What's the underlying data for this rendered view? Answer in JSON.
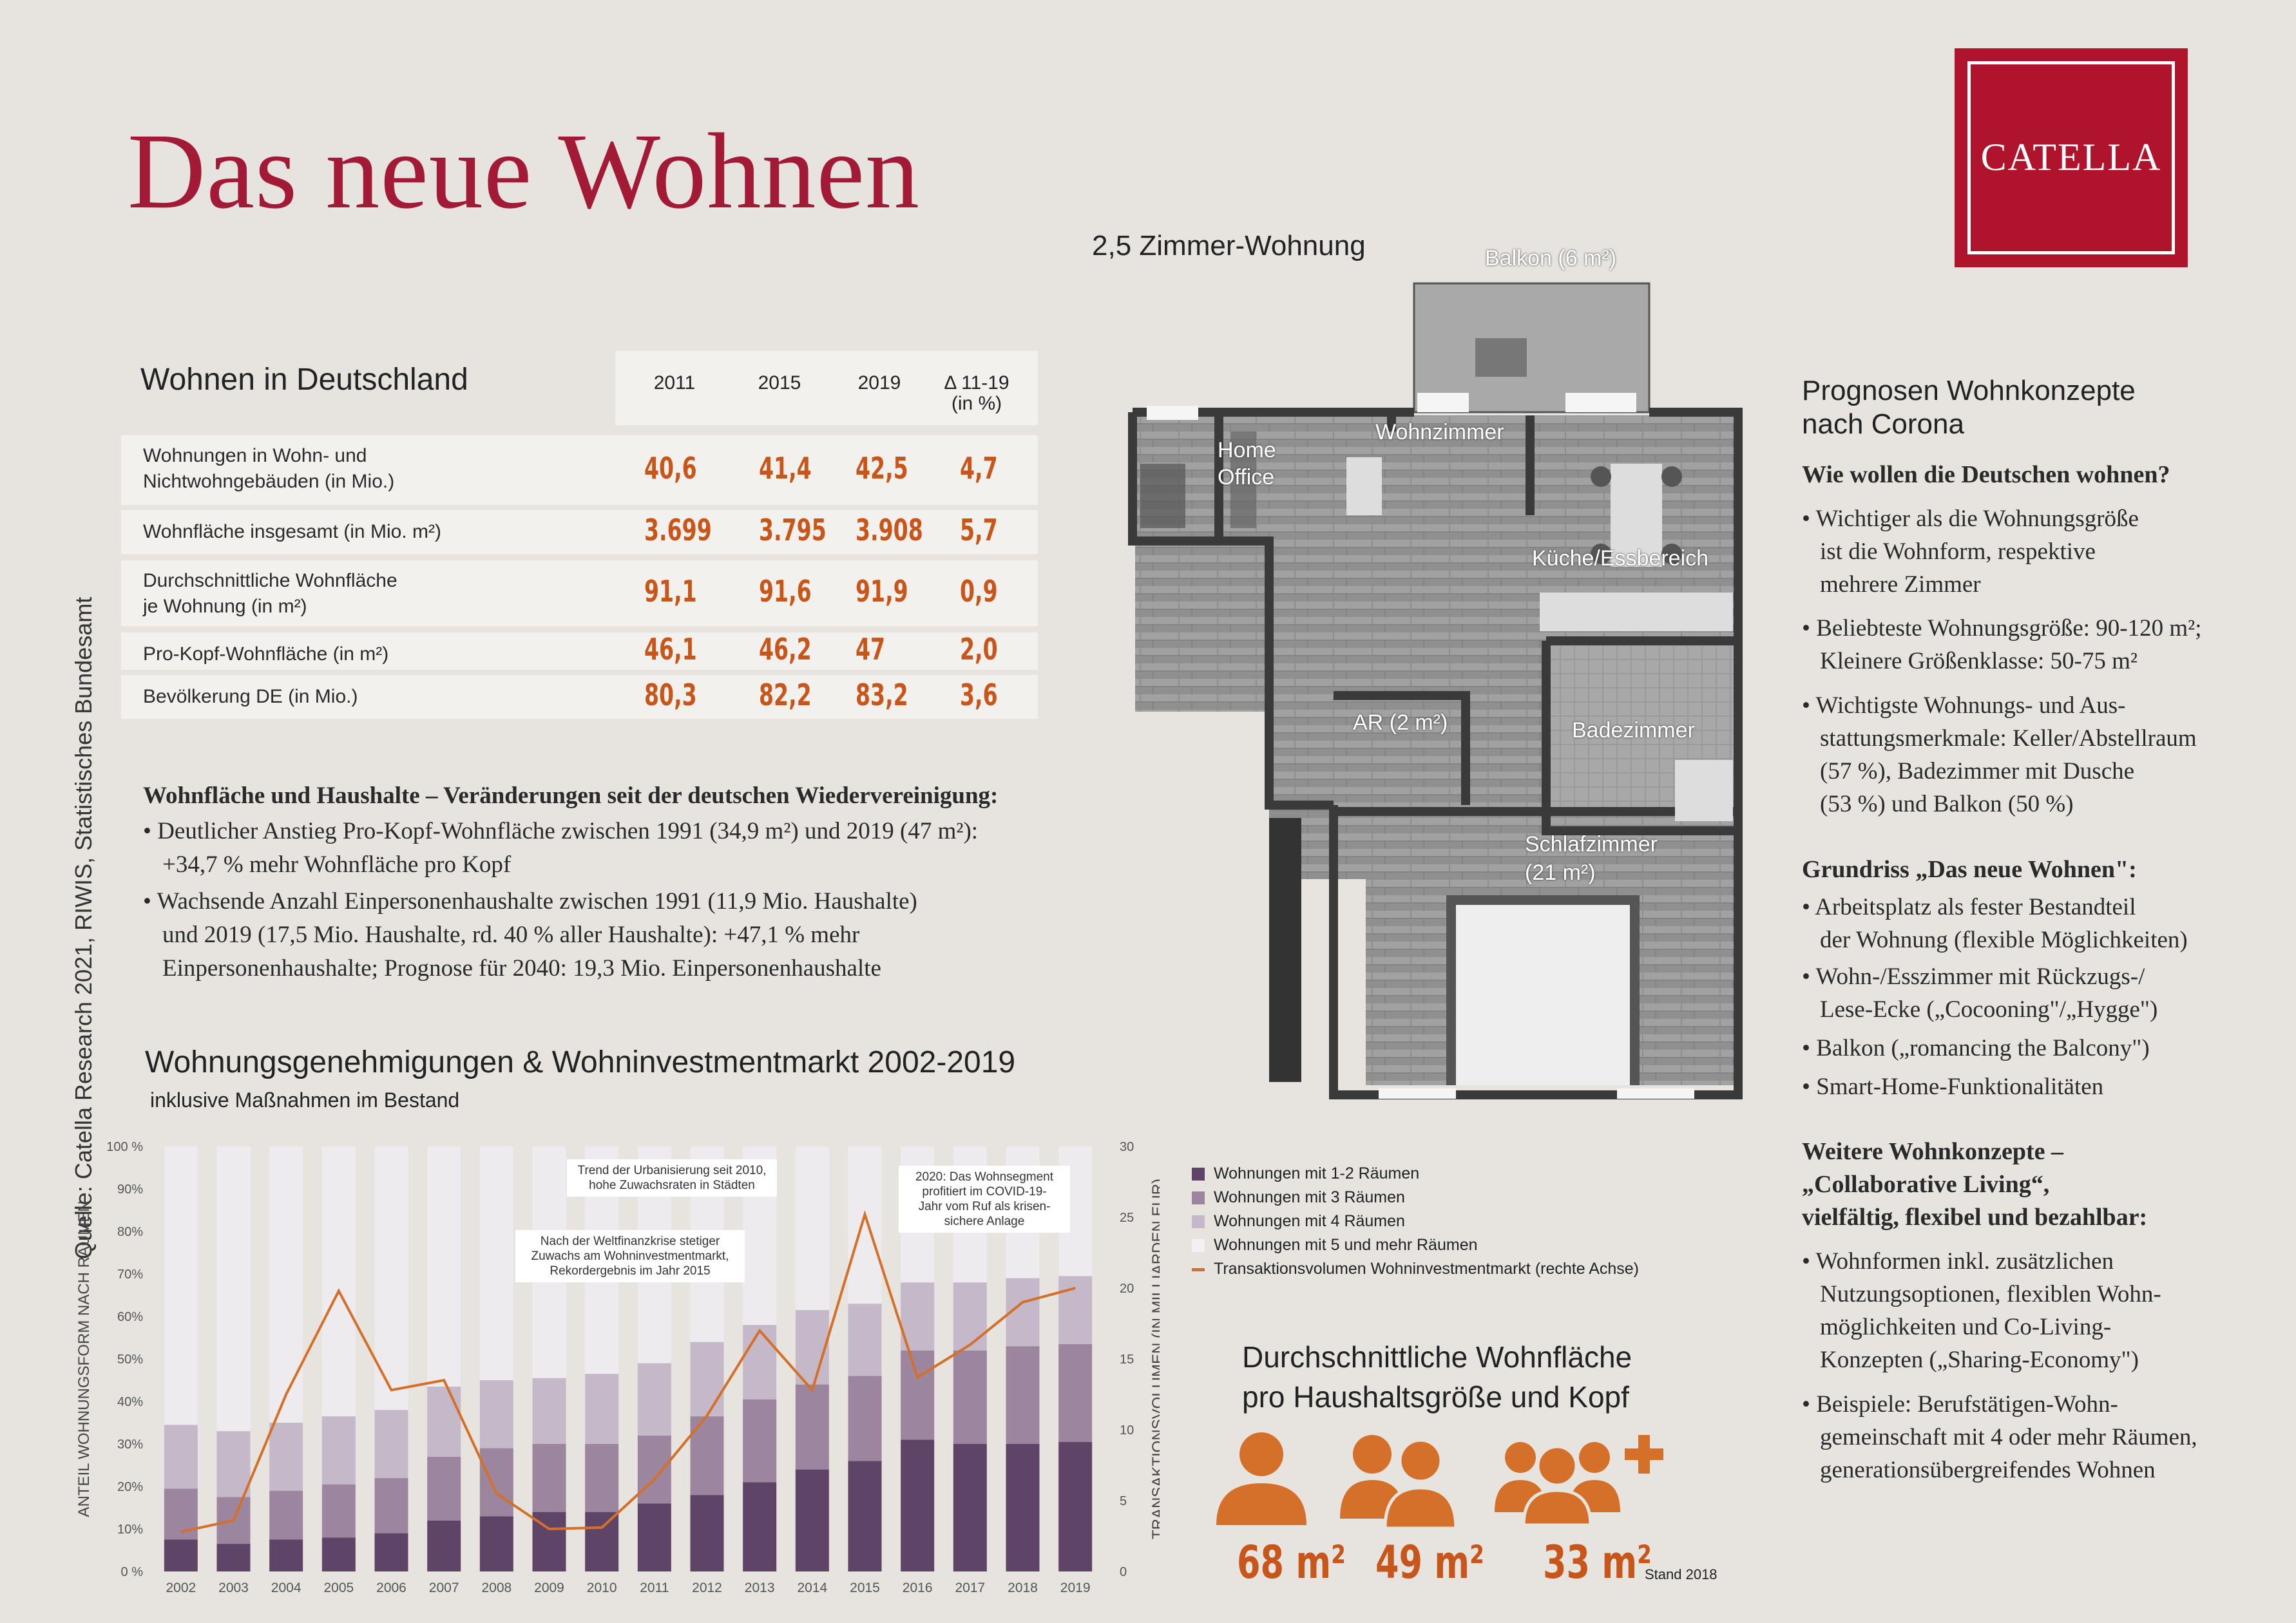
{
  "title": "Das neue Wohnen",
  "logo": "CATELLA",
  "source": "Quelle: Catella Research 2021, RIWIS, Statistisches Bundesamt",
  "table": {
    "title": "Wohnen in Deutschland",
    "headers": [
      "2011",
      "2015",
      "2019",
      "Δ 11-19",
      "(in %)"
    ],
    "rows": [
      {
        "label1": "Wohnungen in Wohn- und",
        "label2": "Nichtwohngebäuden (in Mio.)",
        "v": [
          "40,6",
          "41,4",
          "42,5",
          "4,7"
        ]
      },
      {
        "label1": "Wohnfläche insgesamt (in Mio. m²)",
        "label2": "",
        "v": [
          "3.699",
          "3.795",
          "3.908",
          "5,7"
        ]
      },
      {
        "label1": "Durchschnittliche Wohnfläche",
        "label2": "je Wohnung (in m²)",
        "v": [
          "91,1",
          "91,6",
          "91,9",
          "0,9"
        ]
      },
      {
        "label1": "Pro-Kopf-Wohnfläche (in m²)",
        "label2": "",
        "v": [
          "46,1",
          "46,2",
          "47",
          "2,0"
        ]
      },
      {
        "label1": "Bevölkerung DE (in Mio.)",
        "label2": "",
        "v": [
          "80,3",
          "82,2",
          "83,2",
          "3,6"
        ]
      }
    ]
  },
  "households": {
    "heading": "Wohnfläche und Haushalte – Veränderungen seit der deutschen Wiedervereinigung:",
    "b1l1": "• Deutlicher Anstieg Pro-Kopf-Wohnfläche zwischen 1991 (34,9 m²) und 2019 (47 m²):",
    "b1l2": "+34,7 % mehr Wohnfläche pro Kopf",
    "b2l1": "• Wachsende Anzahl Einpersonenhaushalte zwischen 1991 (11,9 Mio. Haushalte)",
    "b2l2": "und 2019 (17,5 Mio. Haushalte, rd. 40 % aller Haushalte): +47,1 % mehr",
    "b2l3": "Einpersonenhaushalte; Prognose für 2040: 19,3 Mio. Einpersonenhaushalte"
  },
  "chart_title": "Wohnungsgenehmigungen & Wohninvestmentmarkt 2002-2019",
  "chart_subtitle": "inklusive Maßnahmen im Bestand",
  "chart_data": {
    "type": "bar",
    "title": "Wohnungsgenehmigungen & Wohninvestmentmarkt 2002-2019",
    "subtitle": "inklusive Maßnahmen im Bestand",
    "stacked": true,
    "categories": [
      "2002",
      "2003",
      "2004",
      "2005",
      "2006",
      "2007",
      "2008",
      "2009",
      "2010",
      "2011",
      "2012",
      "2013",
      "2014",
      "2015",
      "2016",
      "2017",
      "2018",
      "2019"
    ],
    "ylabel": "ANTEIL WOHNUNGSFORM NACH RÄUMEN",
    "ylabel_right": "TRANSAKTIONSVOLUMEN (IN MILLIARDEN EUR)",
    "ylim": [
      0,
      100
    ],
    "ylim_right": [
      0,
      30
    ],
    "yticks": [
      "0 %",
      "10%",
      "20%",
      "30%",
      "40%",
      "50%",
      "60%",
      "70%",
      "80%",
      "90%",
      "100 %"
    ],
    "yticks_right": [
      "0",
      "5",
      "10",
      "15",
      "20",
      "25",
      "30"
    ],
    "series": [
      {
        "name": "Wohnungen mit 1-2 Räumen",
        "color": "#5e4467",
        "values": [
          7.5,
          6.5,
          7.5,
          8,
          9,
          12,
          13,
          14,
          14,
          16,
          18,
          21,
          24,
          26,
          31,
          30,
          30,
          30.5
        ]
      },
      {
        "name": "Wohnungen mit 3 Räumen",
        "color": "#9b859f",
        "values": [
          12,
          11,
          11.5,
          12.5,
          13,
          15,
          16,
          16,
          16,
          16,
          18.5,
          19.5,
          20,
          20,
          21,
          22,
          23,
          23
        ]
      },
      {
        "name": "Wohnungen mit 4 Räumen",
        "color": "#c5b8c8",
        "values": [
          15,
          15.5,
          16,
          16,
          16,
          16.5,
          16,
          15.5,
          16.5,
          17,
          17.5,
          17.5,
          17.5,
          17,
          16,
          16,
          16,
          16
        ]
      },
      {
        "name": "Wohnungen mit 5 und mehr Räumen",
        "color": "#eeebee",
        "values": [
          65.5,
          67,
          65,
          63.5,
          62,
          56.5,
          55,
          54.5,
          53.5,
          51,
          46,
          42,
          38.5,
          37,
          32,
          32,
          31,
          30.5
        ]
      },
      {
        "name": "Transaktionsvolumen Wohninvestmentmarkt (rechte Achse)",
        "type": "line",
        "axis": "right",
        "color": "#d4702a",
        "values": [
          2.8,
          3.6,
          12.5,
          19.8,
          12.8,
          13.5,
          5.5,
          3.0,
          3.1,
          6.5,
          11,
          17,
          12.8,
          25.2,
          13.7,
          16,
          19,
          20
        ]
      }
    ],
    "annotations": [
      {
        "line1": "Nach der Weltfinanzkrise stetiger",
        "line2": "Zuwachs am Wohninvestmentmarkt,",
        "line3": "Rekordergebnis im Jahr 2015"
      },
      {
        "line1": "Trend der Urbanisierung seit 2010,",
        "line2": "hohe Zuwachsraten in Städten"
      },
      {
        "line1": "2020: Das Wohnsegment",
        "line2": "profitiert im COVID-19-",
        "line3": "Jahr vom Ruf als krisen-",
        "line4": "sichere Anlage"
      }
    ],
    "legend_position": "right"
  },
  "plan": {
    "title": "2,5 Zimmer-Wohnung",
    "rooms": {
      "balkon": "Balkon (6 m²)",
      "office1": "Home",
      "office2": "Office",
      "wohn": "Wohnzimmer",
      "kueche": "Küche/Essbereich",
      "ar": "AR (2 m²)",
      "bad": "Badezimmer",
      "schlaf1": "Schlafzimmer",
      "schlaf2": "(21 m²)"
    }
  },
  "avg": {
    "title1": "Durchschnittliche Wohnfläche",
    "title2": "pro Haushaltsgröße und Kopf",
    "v1": "68 m²",
    "v2": "49 m²",
    "v3": "33 m²",
    "stand": "Stand 2018",
    "icon_color": "#d4702a"
  },
  "right": {
    "title1": "Prognosen Wohnkonzepte",
    "title2": "nach Corona",
    "q": "Wie wollen die Deutschen wohnen?",
    "a1": "• Wichtiger als die Wohnungsgröße",
    "a2": "ist die Wohnform, respektive",
    "a3": "mehrere Zimmer",
    "a4": "• Beliebteste Wohnungsgröße: 90-120 m²;",
    "a5": "Kleinere Größenklasse: 50-75 m²",
    "a6": "• Wichtigste Wohnungs- und Aus-",
    "a7": "stattungsmerkmale: Keller/Abstellraum",
    "a8": "(57 %), Badezimmer mit Dusche",
    "a9": "(53 %) und Balkon (50 %)",
    "g": "Grundriss „Das neue Wohnen\":",
    "g1": "• Arbeitsplatz als fester Bestandteil",
    "g2": "der Wohnung (flexible Möglichkeiten)",
    "g3": "• Wohn-/Esszimmer mit Rückzugs-/",
    "g4": "Lese-Ecke („Cocooning\"/„Hygge\")",
    "g5": "• Balkon („romancing the Balcony\")",
    "g6": "• Smart-Home-Funktionalitäten",
    "w1": "Weitere Wohnkonzepte –",
    "w2": "„Collaborative Living“,",
    "w3": "vielfältig, flexibel und bezahlbar:",
    "w4": "• Wohnformen inkl. zusätzlichen",
    "w5": "Nutzungsoptionen, flexiblen Wohn-",
    "w6": "möglichkeiten und Co-Living-",
    "w7": "Konzepten („Sharing-Economy\")",
    "w8": "• Beispiele: Berufstätigen-Wohn-",
    "w9": "gemeinschaft mit 4 oder mehr Räumen,",
    "w10": "generationsübergreifendes Wohnen"
  }
}
